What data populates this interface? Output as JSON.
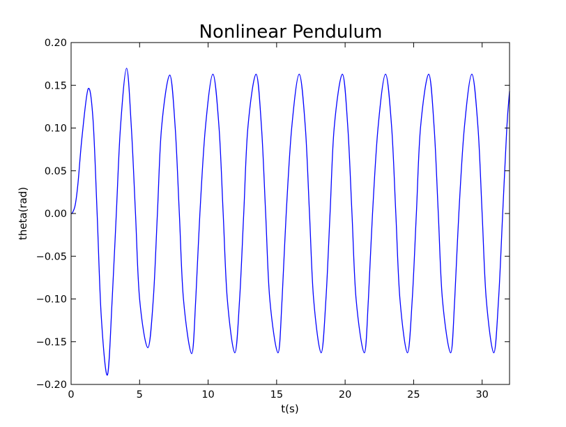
{
  "chart_data": {
    "type": "line",
    "title": "Nonlinear Pendulum",
    "xlabel": "t(s)",
    "ylabel": "theta(rad)",
    "xlim": [
      0,
      32
    ],
    "ylim": [
      -0.2,
      0.2
    ],
    "xticks": [
      0,
      5,
      10,
      15,
      20,
      25,
      30
    ],
    "yticks": [
      -0.2,
      -0.15,
      -0.1,
      -0.05,
      0.0,
      0.05,
      0.1,
      0.15,
      0.2
    ],
    "xtick_labels": [
      "0",
      "5",
      "10",
      "15",
      "20",
      "25",
      "30"
    ],
    "ytick_labels": [
      "−0.20",
      "−0.15",
      "−0.10",
      "−0.05",
      "0.00",
      "0.05",
      "0.10",
      "0.15",
      "0.20"
    ],
    "grid": false,
    "series": [
      {
        "color": "#0000ff",
        "x": [
          0.0,
          0.1,
          0.3,
          0.5,
          0.8,
          1.25,
          1.6,
          1.9,
          2.2,
          2.65,
          3.0,
          3.3,
          3.6,
          4.05,
          4.4,
          4.7,
          5.0,
          5.6,
          6.0,
          6.3,
          6.6,
          7.2,
          7.6,
          7.9,
          8.2,
          8.8,
          9.1,
          9.4,
          9.8,
          10.35,
          10.8,
          11.1,
          11.4,
          11.95,
          12.3,
          12.6,
          12.9,
          13.5,
          13.9,
          14.2,
          14.5,
          15.1,
          15.4,
          15.7,
          16.1,
          16.65,
          17.1,
          17.4,
          17.7,
          18.25,
          18.6,
          18.9,
          19.2,
          19.8,
          20.2,
          20.5,
          20.8,
          21.4,
          21.7,
          22.0,
          22.4,
          22.95,
          23.4,
          23.7,
          24.0,
          24.55,
          24.9,
          25.2,
          25.5,
          26.1,
          26.5,
          26.8,
          27.1,
          27.7,
          28.0,
          28.3,
          28.7,
          29.25,
          29.7,
          30.0,
          30.3,
          30.85,
          31.2,
          31.5,
          31.8,
          32.0
        ],
        "y": [
          0.0,
          0.001,
          0.01,
          0.035,
          0.09,
          0.146,
          0.11,
          0.0,
          -0.12,
          -0.189,
          -0.1,
          0.0,
          0.1,
          0.17,
          0.1,
          0.0,
          -0.1,
          -0.157,
          -0.1,
          0.0,
          0.1,
          0.162,
          0.1,
          0.0,
          -0.1,
          -0.164,
          -0.1,
          0.0,
          0.1,
          0.163,
          0.1,
          0.0,
          -0.1,
          -0.163,
          -0.1,
          0.0,
          0.1,
          0.163,
          0.1,
          0.0,
          -0.1,
          -0.163,
          -0.1,
          0.0,
          0.1,
          0.163,
          0.1,
          0.0,
          -0.1,
          -0.163,
          -0.1,
          0.0,
          0.1,
          0.163,
          0.1,
          0.0,
          -0.1,
          -0.163,
          -0.1,
          0.0,
          0.1,
          0.163,
          0.1,
          0.0,
          -0.1,
          -0.163,
          -0.1,
          0.0,
          0.1,
          0.163,
          0.1,
          0.0,
          -0.1,
          -0.163,
          -0.1,
          0.0,
          0.1,
          0.163,
          0.1,
          0.0,
          -0.1,
          -0.163,
          -0.1,
          0.0,
          0.1,
          0.143
        ]
      }
    ]
  }
}
